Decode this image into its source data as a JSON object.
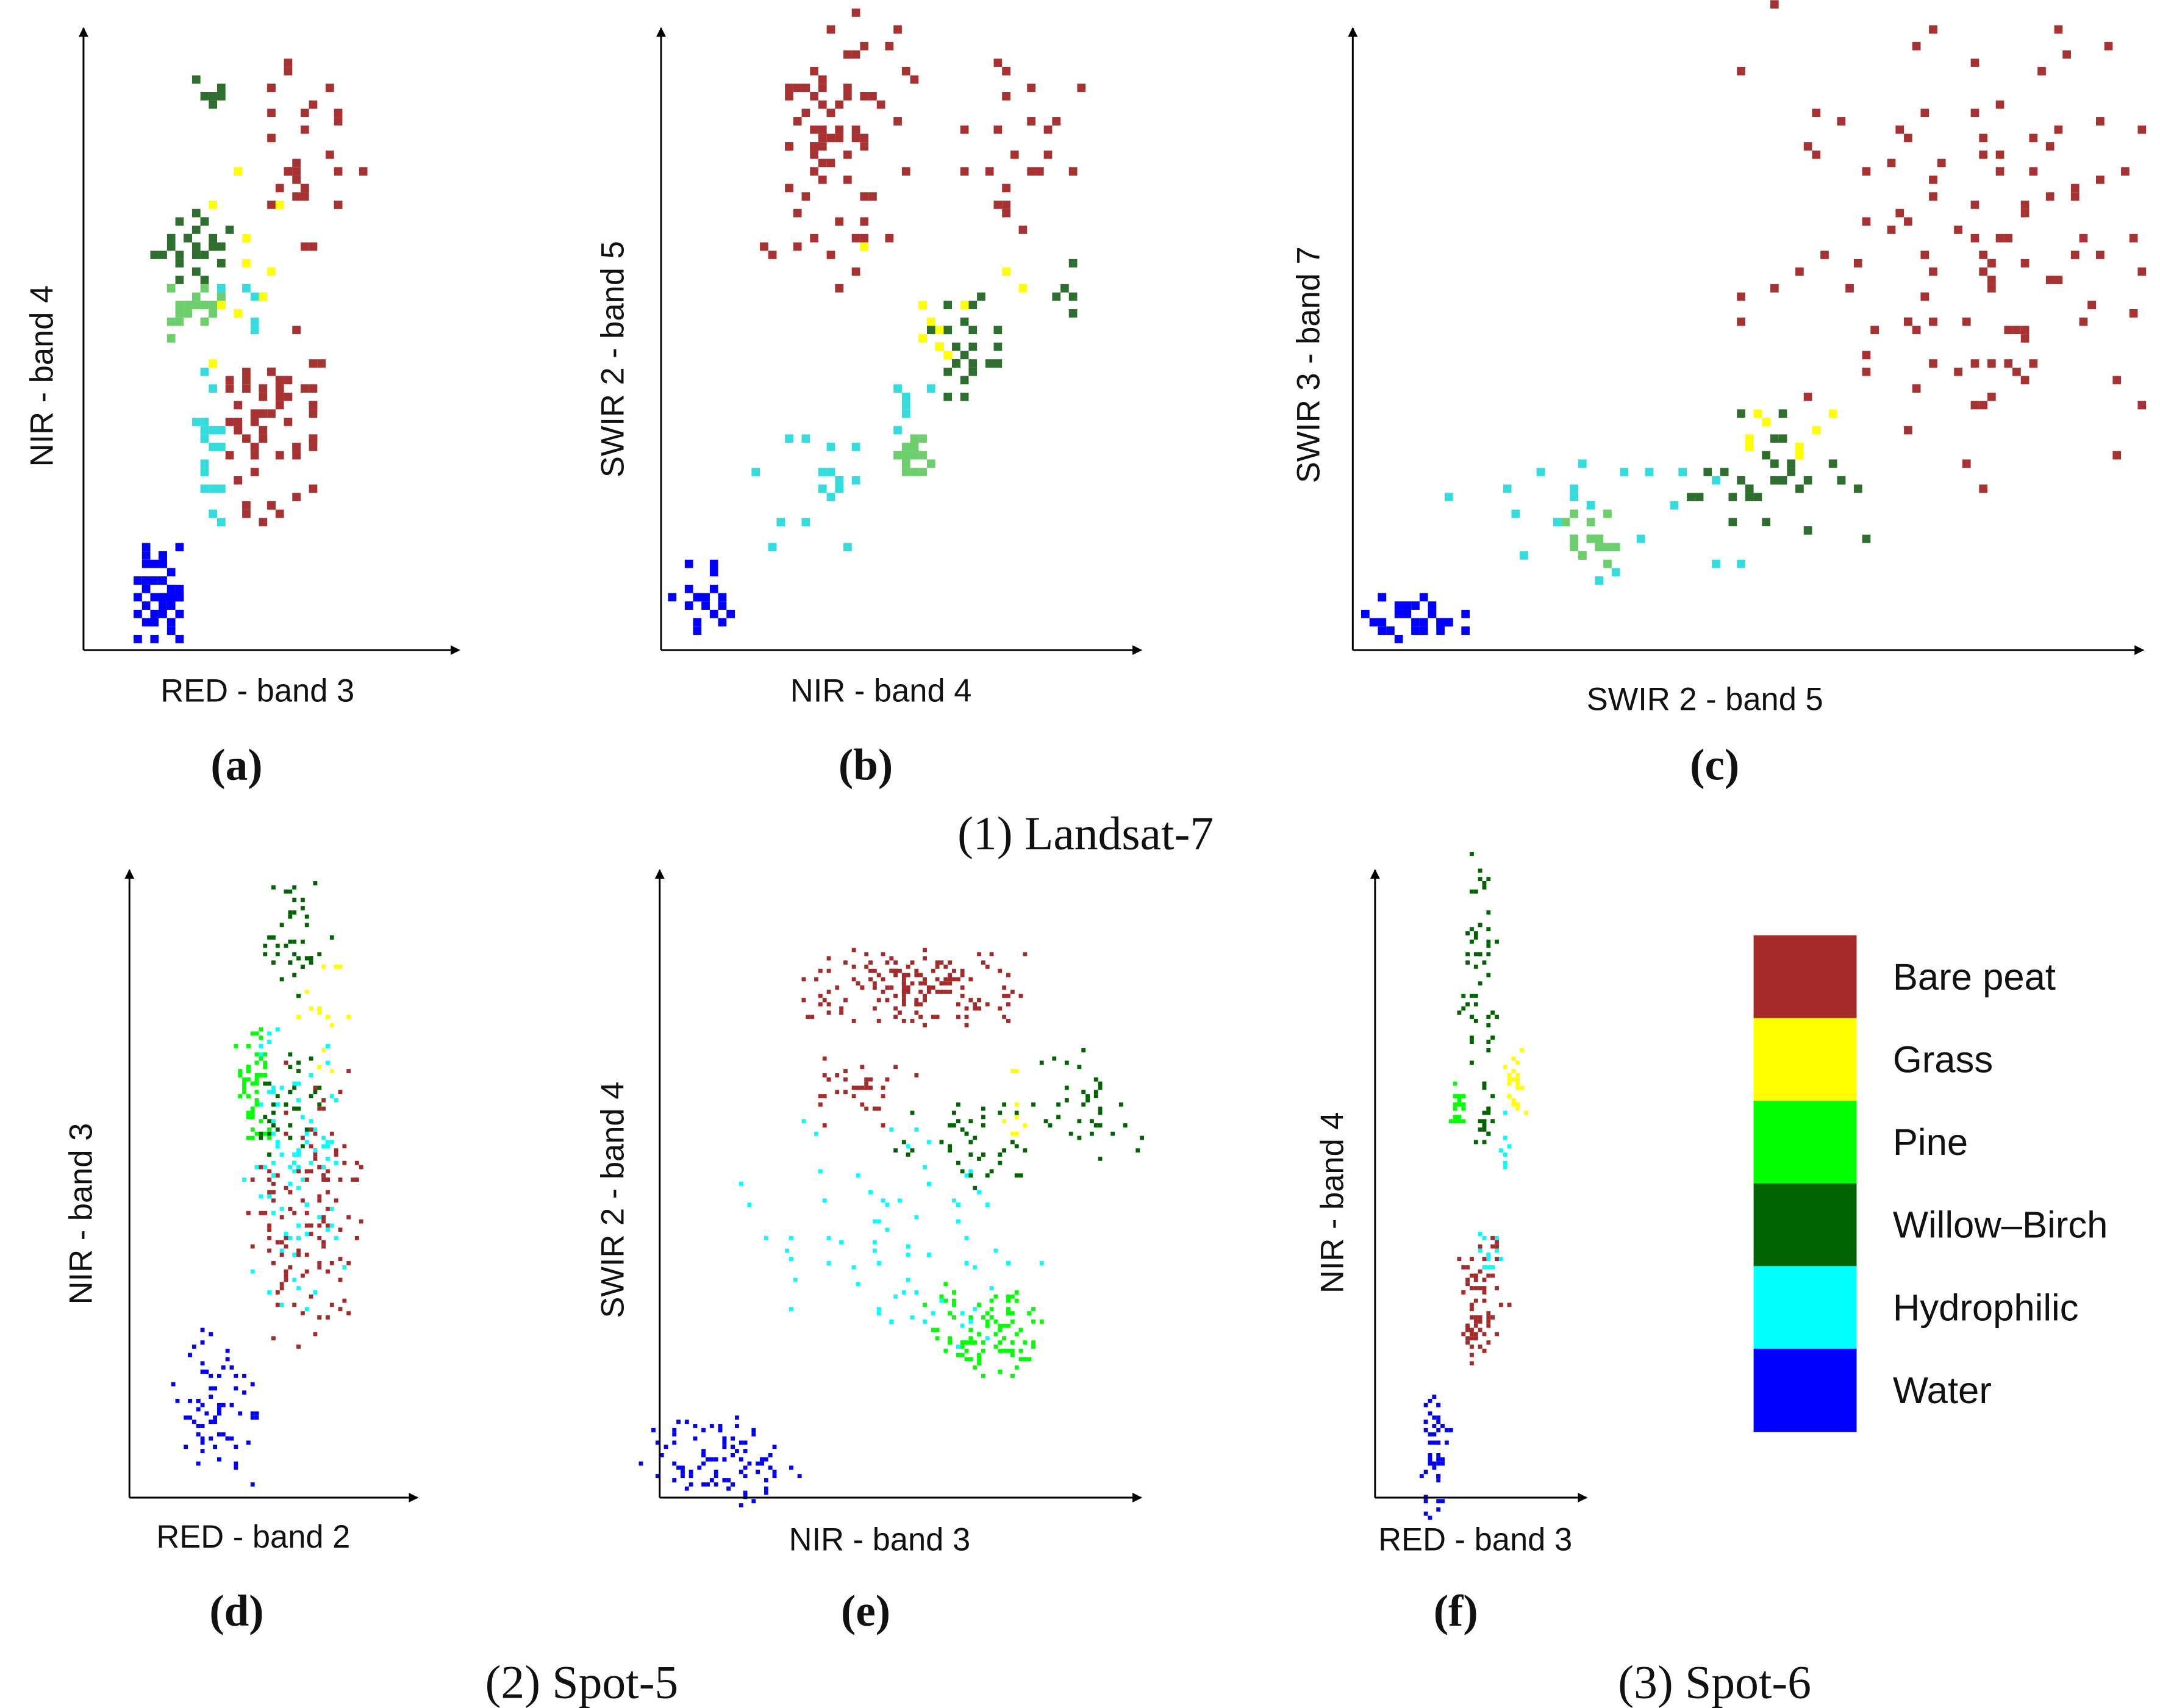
{
  "figure": {
    "group_captions": [
      "(1) Landsat-7",
      "(2) Spot-5",
      "(3) Spot-6"
    ],
    "legend": [
      {
        "label": "Bare peat",
        "color": "#A52A2A"
      },
      {
        "label": "Grass",
        "color": "#FFFF00"
      },
      {
        "label": "Pine",
        "color": "#00FF00"
      },
      {
        "label": "Willow–Birch",
        "color": "#006400"
      },
      {
        "label": "Hydrophilic",
        "color": "#00FFFF"
      },
      {
        "label": "Water",
        "color": "#0000FF"
      }
    ]
  },
  "chart_data": [
    {
      "type": "scatter",
      "panel": "(a)",
      "group": "(1) Landsat-7",
      "xlabel": "RED - band 3",
      "ylabel": "NIR - band 4",
      "xlim": [
        0,
        100
      ],
      "ylim": [
        0,
        100
      ],
      "grid": false,
      "marker": "large",
      "clusters": [
        {
          "class": "Water",
          "color": "#0000FF",
          "x": [
            15,
            26
          ],
          "y": [
            4,
            15
          ],
          "n": 45
        },
        {
          "class": "Hydrophilic",
          "color": "#33DDDD",
          "x": [
            30,
            37
          ],
          "y": [
            24,
            42
          ],
          "n": 18
        },
        {
          "class": "Hydrophilic",
          "color": "#33DDDD",
          "x": [
            39,
            52
          ],
          "y": [
            54,
            60
          ],
          "n": 8
        },
        {
          "class": "Bare peat",
          "color": "#A83232",
          "x": [
            43,
            61
          ],
          "y": [
            28,
            48
          ],
          "n": 60
        },
        {
          "class": "Bare peat",
          "color": "#A83232",
          "x": [
            50,
            69
          ],
          "y": [
            70,
            91
          ],
          "n": 30
        },
        {
          "class": "Pine",
          "color": "#6CCF6C",
          "x": [
            25,
            36
          ],
          "y": [
            54,
            60
          ],
          "n": 22
        },
        {
          "class": "Willow–Birch",
          "color": "#2E6E2E",
          "x": [
            23,
            37
          ],
          "y": [
            64,
            73
          ],
          "n": 28
        },
        {
          "class": "Willow–Birch",
          "color": "#2E6E2E",
          "x": [
            31,
            38
          ],
          "y": [
            91,
            95
          ],
          "n": 6
        },
        {
          "class": "Grass",
          "color": "#FFFF00",
          "x": [
            39,
            50
          ],
          "y": [
            50,
            75
          ],
          "n": 10
        }
      ]
    },
    {
      "type": "scatter",
      "panel": "(b)",
      "group": "(1) Landsat-7",
      "xlabel": "NIR - band 4",
      "ylabel": "SWIR 2 - band 5",
      "xlim": [
        0,
        100
      ],
      "ylim": [
        0,
        100
      ],
      "grid": false,
      "marker": "large",
      "clusters": [
        {
          "class": "Water",
          "color": "#0000FF",
          "x": [
            4,
            14
          ],
          "y": [
            3,
            13
          ],
          "n": 22
        },
        {
          "class": "Hydrophilic",
          "color": "#33DDDD",
          "x": [
            23,
            42
          ],
          "y": [
            21,
            37
          ],
          "n": 16
        },
        {
          "class": "Hydrophilic",
          "color": "#33DDDD",
          "x": [
            49,
            55
          ],
          "y": [
            37,
            45
          ],
          "n": 6
        },
        {
          "class": "Pine",
          "color": "#6CCF6C",
          "x": [
            51,
            57
          ],
          "y": [
            30,
            35
          ],
          "n": 14
        },
        {
          "class": "Willow–Birch",
          "color": "#2E6E2E",
          "x": [
            59,
            70
          ],
          "y": [
            46,
            57
          ],
          "n": 24
        },
        {
          "class": "Willow–Birch",
          "color": "#2E6E2E",
          "x": [
            86,
            90
          ],
          "y": [
            58,
            64
          ],
          "n": 5
        },
        {
          "class": "Grass",
          "color": "#FFFF00",
          "x": [
            48,
            71
          ],
          "y": [
            53,
            65
          ],
          "n": 10
        },
        {
          "class": "Bare peat",
          "color": "#A83232",
          "x": [
            26,
            48
          ],
          "y": [
            71,
            99
          ],
          "n": 70
        },
        {
          "class": "Bare peat",
          "color": "#A83232",
          "x": [
            67,
            86
          ],
          "y": [
            75,
            92
          ],
          "n": 22
        }
      ]
    },
    {
      "type": "scatter",
      "panel": "(c)",
      "group": "(1) Landsat-7",
      "xlabel": "SWIR 2 - band 5",
      "ylabel": "SWIR 3 - band 7",
      "xlim": [
        0,
        100
      ],
      "ylim": [
        0,
        100
      ],
      "grid": false,
      "marker": "large",
      "clusters": [
        {
          "class": "Water",
          "color": "#0000FF",
          "x": [
            2,
            12
          ],
          "y": [
            4,
            9
          ],
          "n": 28
        },
        {
          "class": "Hydrophilic",
          "color": "#33DDDD",
          "x": [
            19,
            43
          ],
          "y": [
            14,
            28
          ],
          "n": 24
        },
        {
          "class": "Pine",
          "color": "#6CCF6C",
          "x": [
            28,
            33
          ],
          "y": [
            16,
            24
          ],
          "n": 16
        },
        {
          "class": "Willow–Birch",
          "color": "#2E6E2E",
          "x": [
            44,
            62
          ],
          "y": [
            23,
            37
          ],
          "n": 30
        },
        {
          "class": "Grass",
          "color": "#FFFF00",
          "x": [
            50,
            61
          ],
          "y": [
            34,
            40
          ],
          "n": 8
        },
        {
          "class": "Bare peat",
          "color": "#A83232",
          "x": [
            61,
            95
          ],
          "y": [
            40,
            90
          ],
          "n": 110
        }
      ]
    },
    {
      "type": "scatter",
      "panel": "(d)",
      "group": "(2) Spot-5",
      "xlabel": "RED -  band 2",
      "ylabel": "NIR - band 3",
      "xlim": [
        0,
        100
      ],
      "ylim": [
        0,
        100
      ],
      "grid": false,
      "marker": "small",
      "clusters": [
        {
          "class": "Water",
          "color": "#0000FF",
          "x": [
            20,
            40
          ],
          "y": [
            5,
            22
          ],
          "n": 70
        },
        {
          "class": "Bare peat",
          "color": "#A52A2A",
          "x": [
            52,
            78
          ],
          "y": [
            33,
            64
          ],
          "n": 130
        },
        {
          "class": "Hydrophilic",
          "color": "#00FFFF",
          "x": [
            49,
            73
          ],
          "y": [
            39,
            68
          ],
          "n": 80
        },
        {
          "class": "Willow–Birch",
          "color": "#006400",
          "x": [
            52,
            69
          ],
          "y": [
            86,
            98
          ],
          "n": 40
        },
        {
          "class": "Willow–Birch",
          "color": "#006400",
          "x": [
            52,
            66
          ],
          "y": [
            59,
            71
          ],
          "n": 35
        },
        {
          "class": "Pine",
          "color": "#00FF00",
          "x": [
            41,
            49
          ],
          "y": [
            62,
            74
          ],
          "n": 50
        },
        {
          "class": "Grass",
          "color": "#FFFF00",
          "x": [
            64,
            76
          ],
          "y": [
            72,
            87
          ],
          "n": 14
        }
      ]
    },
    {
      "type": "scatter",
      "panel": "(e)",
      "group": "(2) Spot-5",
      "xlabel": "NIR - band 3",
      "ylabel": "SWIR 2 - band 4",
      "xlim": [
        0,
        100
      ],
      "ylim": [
        0,
        100
      ],
      "grid": false,
      "marker": "small",
      "clusters": [
        {
          "class": "Water",
          "color": "#0000FF",
          "x": [
            3,
            23
          ],
          "y": [
            2,
            12
          ],
          "n": 90
        },
        {
          "class": "Hydrophilic",
          "color": "#00FFFF",
          "x": [
            32,
            71
          ],
          "y": [
            30,
            54
          ],
          "n": 70
        },
        {
          "class": "Pine",
          "color": "#00FF00",
          "x": [
            62,
            78
          ],
          "y": [
            22,
            33
          ],
          "n": 90
        },
        {
          "class": "Willow–Birch",
          "color": "#006400",
          "x": [
            57,
            77
          ],
          "y": [
            54,
            63
          ],
          "n": 45
        },
        {
          "class": "Willow–Birch",
          "color": "#006400",
          "x": [
            86,
            100
          ],
          "y": [
            57,
            71
          ],
          "n": 35
        },
        {
          "class": "Grass",
          "color": "#FFFF00",
          "x": [
            74,
            78
          ],
          "y": [
            61,
            69
          ],
          "n": 8
        },
        {
          "class": "Bare peat",
          "color": "#A52A2A",
          "x": [
            39,
            68
          ],
          "y": [
            80,
            88
          ],
          "n": 160
        },
        {
          "class": "Bare peat",
          "color": "#A52A2A",
          "x": [
            34,
            51
          ],
          "y": [
            63,
            72
          ],
          "n": 35
        }
      ]
    },
    {
      "type": "scatter",
      "panel": "(f)",
      "group": "(3) Spot-6",
      "xlabel": "RED -  band 3",
      "ylabel": "NIR - band 4",
      "xlim": [
        0,
        100
      ],
      "ylim": [
        0,
        100
      ],
      "grid": false,
      "marker": "small",
      "clusters": [
        {
          "class": "Water",
          "color": "#0000FF",
          "x": [
            24,
            34
          ],
          "y": [
            1,
            15
          ],
          "n": 50
        },
        {
          "class": "Bare peat",
          "color": "#A52A2A",
          "x": [
            47,
            62
          ],
          "y": [
            26,
            40
          ],
          "n": 70
        },
        {
          "class": "Hydrophilic",
          "color": "#00FFFF",
          "x": [
            54,
            62
          ],
          "y": [
            38,
            44
          ],
          "n": 12
        },
        {
          "class": "Hydrophilic",
          "color": "#00FFFF",
          "x": [
            64,
            67
          ],
          "y": [
            55,
            63
          ],
          "n": 8
        },
        {
          "class": "Pine",
          "color": "#00FF00",
          "x": [
            39,
            44
          ],
          "y": [
            61,
            67
          ],
          "n": 16
        },
        {
          "class": "Willow–Birch",
          "color": "#006400",
          "x": [
            46,
            59
          ],
          "y": [
            77,
            99
          ],
          "n": 50
        },
        {
          "class": "Willow–Birch",
          "color": "#006400",
          "x": [
            53,
            59
          ],
          "y": [
            59,
            67
          ],
          "n": 20
        },
        {
          "class": "Grass",
          "color": "#FFFF00",
          "x": [
            66,
            75
          ],
          "y": [
            63,
            72
          ],
          "n": 22
        }
      ]
    }
  ]
}
